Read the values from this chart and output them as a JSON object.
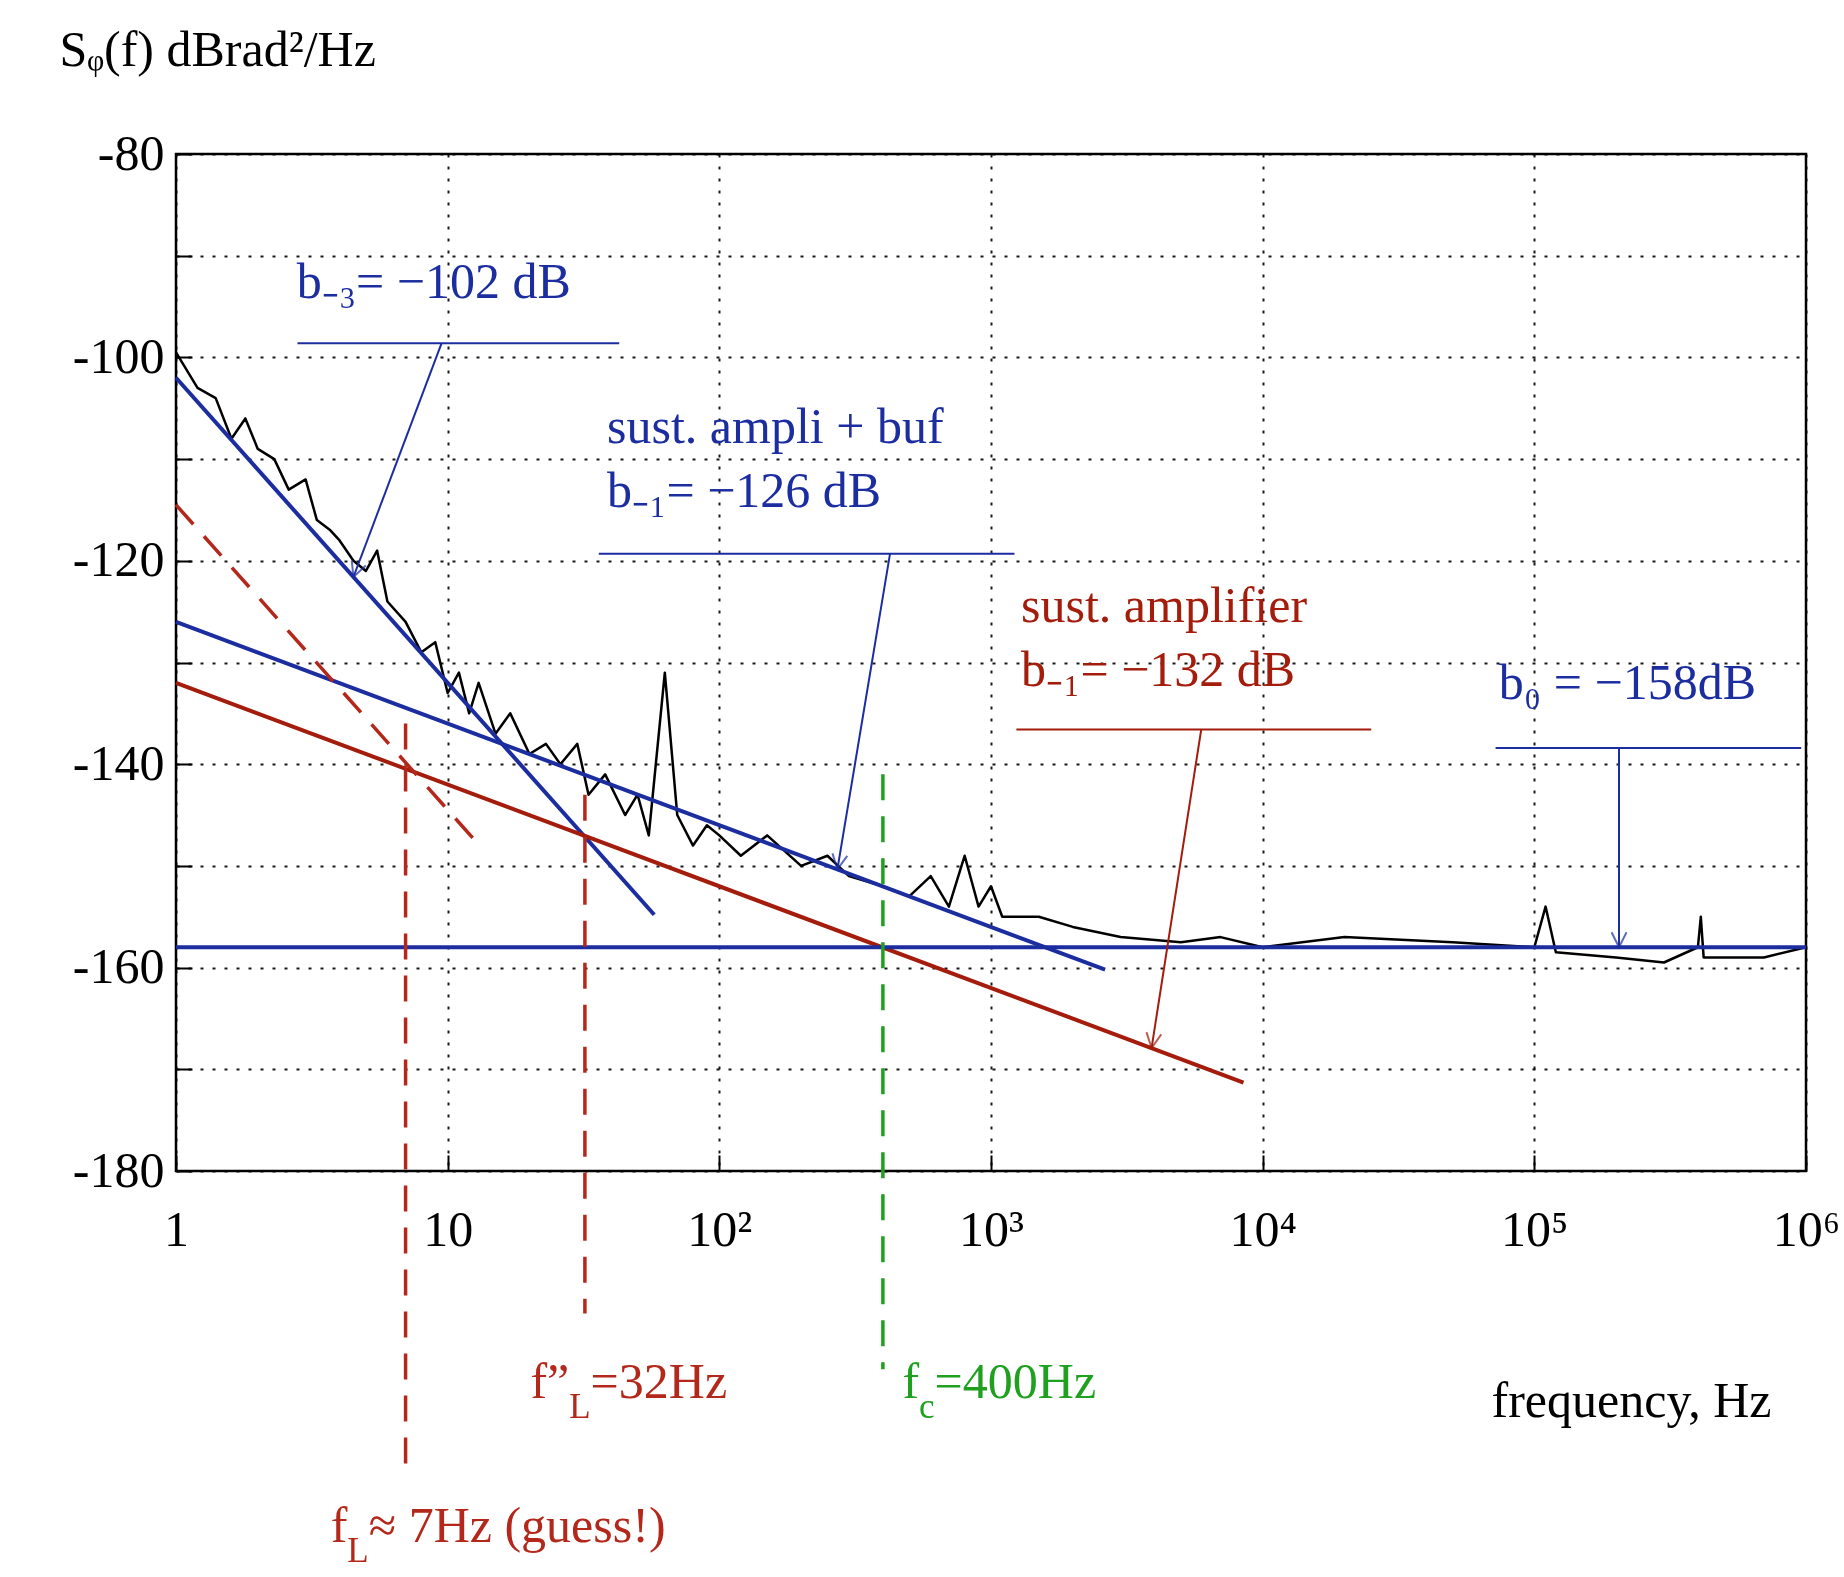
{
  "chart_data": {
    "type": "line",
    "ylabel": "Sᵩ(f)    dBrad²/Hz",
    "xlabel": "frequency, Hz",
    "log": "x",
    "xlim": [
      1,
      1000000
    ],
    "xticks": [
      1,
      10,
      {
        "value": 100,
        "label": "10²"
      },
      {
        "value": 1000,
        "label": "10³"
      },
      {
        "value": 10000,
        "label": "10⁴"
      },
      {
        "value": 100000,
        "label": "10⁵"
      },
      {
        "value": 1000000,
        "label": "10⁶"
      }
    ],
    "ylim": [
      -180,
      -80
    ],
    "yticks": [
      -80,
      {
        "value": -90,
        "label": null
      },
      -100,
      {
        "value": -110,
        "label": null
      },
      -120,
      {
        "value": -130,
        "label": null
      },
      -140,
      {
        "value": -150,
        "label": null
      },
      -160,
      {
        "value": -170,
        "label": null
      },
      -180
    ],
    "grid": true,
    "series": [
      {
        "color": "#000000",
        "x": [
          1,
          1.2,
          1.4,
          1.6,
          1.8,
          2,
          2.3,
          2.6,
          3,
          3.3,
          3.7,
          4,
          4.5,
          5,
          5.5,
          6,
          7,
          8,
          9,
          10,
          11,
          12,
          13,
          15,
          17,
          20,
          23,
          26,
          30,
          33,
          38,
          45,
          50,
          55,
          63,
          70,
          80,
          90,
          100,
          120,
          150,
          200,
          250,
          300,
          400,
          500,
          600,
          700,
          800,
          900,
          1000,
          1100,
          1500,
          2000,
          3000,
          5000,
          7000,
          10000,
          20000,
          50000,
          100000,
          110000,
          120000,
          200000,
          300000,
          400000,
          410000,
          420000,
          700000,
          1000000
        ],
        "values": [
          -99.5,
          -103,
          -104,
          -108,
          -106,
          -109,
          -110,
          -113,
          -112,
          -116,
          -117,
          -118,
          -120,
          -121,
          -119,
          -124,
          -126,
          -129,
          -128,
          -133,
          -131,
          -135,
          -132,
          -137,
          -135,
          -139,
          -138,
          -140,
          -138,
          -143,
          -141,
          -145,
          -143,
          -147,
          -131,
          -145,
          -148,
          -146,
          -147,
          -149,
          -147,
          -150,
          -149,
          -151,
          -152,
          -153,
          -151,
          -154,
          -149,
          -154,
          -152,
          -155,
          -155,
          -156,
          -157,
          -157.5,
          -157,
          -158,
          -157,
          -157.5,
          -158,
          -154,
          -158.5,
          -159,
          -159.5,
          -158,
          -155,
          -159,
          -159,
          -158
        ]
      },
      {
        "name": "b₋₃= −102 dB",
        "color": "#1c2da0",
        "x": [
          1,
          57.6
        ],
        "values": [
          -102,
          -154.8
        ]
      },
      {
        "name": "sust. ampli + buf\nb₋₁= −126 dB",
        "color": "#1c2da0",
        "x": [
          1,
          2630
        ],
        "values": [
          -126,
          -160.2
        ]
      },
      {
        "name": "sust. amplifier\nb₋₁= −132 dB",
        "color": "#a31c0c",
        "x": [
          1,
          8500
        ],
        "values": [
          -132,
          -171.3
        ]
      },
      {
        "name": "b₀ = −158dB",
        "color": "#1c2da0",
        "x": [
          1,
          1000000
        ],
        "values": [
          -158,
          -158
        ]
      },
      {
        "color": "#b3281a",
        "line_style": "dashed",
        "x": [
          1,
          12.9
        ],
        "values": [
          -114.5,
          -147.8
        ]
      }
    ],
    "ref_lines": [
      {
        "axis": "x",
        "value": 7,
        "label": "f$_{L}$≈ 7Hz   (guess!)",
        "color": "#b3281a",
        "line_style": "dashed"
      },
      {
        "axis": "x",
        "value": 32,
        "label": "f”$_{L}$=32Hz",
        "color": "#b3281a",
        "line_style": "dashed"
      },
      {
        "axis": "x",
        "value": 400,
        "label": "f$_{c}$=400Hz",
        "color": "#1fa01f",
        "line_style": "dashed"
      }
    ]
  }
}
